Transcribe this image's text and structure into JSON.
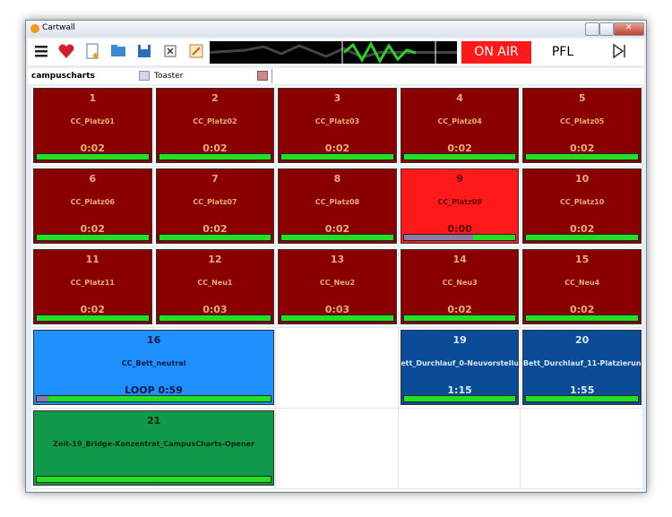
{
  "window": {
    "title": "Cartwall"
  },
  "toolbar": {
    "on_air": "ON AIR",
    "pfl": "PFL"
  },
  "tabs": [
    "campuscharts",
    "Toaster"
  ],
  "carts": [
    {
      "number": 1,
      "name": "CC_Platz01",
      "time": "0:02",
      "color": "#8a0000",
      "text_color": "#e8b070",
      "played": 0,
      "span": 1
    },
    {
      "number": 2,
      "name": "CC_Platz02",
      "time": "0:02",
      "color": "#8a0000",
      "text_color": "#e8b070",
      "played": 0,
      "span": 1
    },
    {
      "number": 3,
      "name": "CC_Platz03",
      "time": "0:02",
      "color": "#8a0000",
      "text_color": "#e8b070",
      "played": 0,
      "span": 1
    },
    {
      "number": 4,
      "name": "CC_Platz04",
      "time": "0:02",
      "color": "#8a0000",
      "text_color": "#e8b070",
      "played": 0,
      "span": 1
    },
    {
      "number": 5,
      "name": "CC_Platz05",
      "time": "0:02",
      "color": "#8a0000",
      "text_color": "#e8b070",
      "played": 0,
      "span": 1
    },
    {
      "number": 6,
      "name": "CC_Platz06",
      "time": "0:02",
      "color": "#8a0000",
      "text_color": "#e8b070",
      "played": 0,
      "span": 1
    },
    {
      "number": 7,
      "name": "CC_Platz07",
      "time": "0:02",
      "color": "#8a0000",
      "text_color": "#e8b070",
      "played": 0,
      "span": 1
    },
    {
      "number": 8,
      "name": "CC_Platz08",
      "time": "0:02",
      "color": "#8a0000",
      "text_color": "#e8b070",
      "played": 0,
      "span": 1
    },
    {
      "number": 9,
      "name": "CC_Platz09",
      "time": "0:00",
      "color": "#ff1a1a",
      "text_color": "#5a0000",
      "played": 62,
      "span": 1
    },
    {
      "number": 10,
      "name": "CC_Platz10",
      "time": "0:02",
      "color": "#8a0000",
      "text_color": "#e8b070",
      "played": 0,
      "span": 1
    },
    {
      "number": 11,
      "name": "CC_Platz11",
      "time": "0:02",
      "color": "#8a0000",
      "text_color": "#e8b070",
      "played": 0,
      "span": 1
    },
    {
      "number": 12,
      "name": "CC_Neu1",
      "time": "0:03",
      "color": "#8a0000",
      "text_color": "#e8b070",
      "played": 0,
      "span": 1
    },
    {
      "number": 13,
      "name": "CC_Neu2",
      "time": "0:03",
      "color": "#8a0000",
      "text_color": "#e8b070",
      "played": 0,
      "span": 1
    },
    {
      "number": 14,
      "name": "CC_Neu3",
      "time": "0:02",
      "color": "#8a0000",
      "text_color": "#e8b070",
      "played": 0,
      "span": 1
    },
    {
      "number": 15,
      "name": "CC_Neu4",
      "time": "0:02",
      "color": "#8a0000",
      "text_color": "#e8b070",
      "played": 0,
      "span": 1
    },
    {
      "number": 16,
      "name": "CC_Bett_neutral",
      "time": "LOOP 0:59",
      "color": "#1e90ff",
      "text_color": "#001a40",
      "played": 5,
      "span": 2
    },
    {
      "number": 19,
      "name": "ett_Durchlauf_0-Neuvorstellu",
      "time": "1:15",
      "color": "#0a4c96",
      "text_color": "#dde8ff",
      "played": 0,
      "span": 1
    },
    {
      "number": 20,
      "name": "Bett_Durchlauf_11-Platzierun",
      "time": "1:55",
      "color": "#0a4c96",
      "text_color": "#dde8ff",
      "played": 0,
      "span": 1
    },
    {
      "number": 21,
      "name": "Zeit-19_Bridge-Konzentrat_CampusCharts-Opener",
      "time": "",
      "color": "#11994a",
      "text_color": "#002a10",
      "played": 0,
      "span": 2
    }
  ]
}
